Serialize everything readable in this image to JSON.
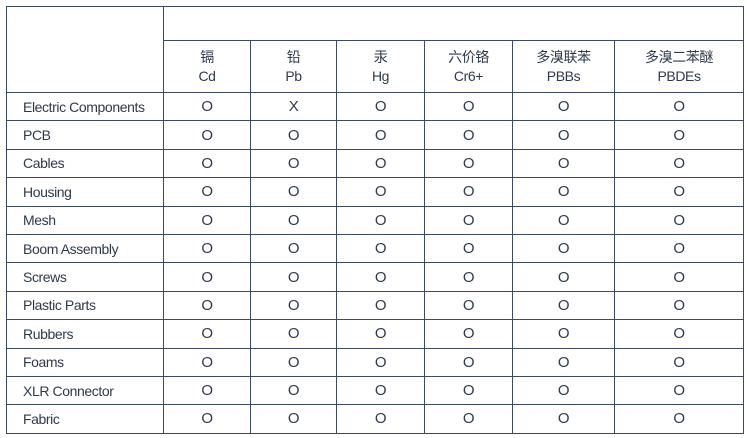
{
  "table": {
    "columns": [
      {
        "cn": "镉",
        "en": "Cd"
      },
      {
        "cn": "铅",
        "en": "Pb"
      },
      {
        "cn": "汞",
        "en": "Hg"
      },
      {
        "cn": "六价铬",
        "en": "Cr6+"
      },
      {
        "cn": "多溴联苯",
        "en": "PBBs"
      },
      {
        "cn": "多溴二苯醚",
        "en": "PBDEs"
      }
    ],
    "rows": [
      {
        "part": "Electric Components",
        "values": [
          "O",
          "X",
          "O",
          "O",
          "O",
          "O"
        ]
      },
      {
        "part": "PCB",
        "values": [
          "O",
          "O",
          "O",
          "O",
          "O",
          "O"
        ]
      },
      {
        "part": "Cables",
        "values": [
          "O",
          "O",
          "O",
          "O",
          "O",
          "O"
        ]
      },
      {
        "part": "Housing",
        "values": [
          "O",
          "O",
          "O",
          "O",
          "O",
          "O"
        ]
      },
      {
        "part": "Mesh",
        "values": [
          "O",
          "O",
          "O",
          "O",
          "O",
          "O"
        ]
      },
      {
        "part": "Boom Assembly",
        "values": [
          "O",
          "O",
          "O",
          "O",
          "O",
          "O"
        ]
      },
      {
        "part": "Screws",
        "values": [
          "O",
          "O",
          "O",
          "O",
          "O",
          "O"
        ]
      },
      {
        "part": "Plastic Parts",
        "values": [
          "O",
          "O",
          "O",
          "O",
          "O",
          "O"
        ]
      },
      {
        "part": "Rubbers",
        "values": [
          "O",
          "O",
          "O",
          "O",
          "O",
          "O"
        ]
      },
      {
        "part": "Foams",
        "values": [
          "O",
          "O",
          "O",
          "O",
          "O",
          "O"
        ]
      },
      {
        "part": "XLR Connector",
        "values": [
          "O",
          "O",
          "O",
          "O",
          "O",
          "O"
        ]
      },
      {
        "part": "Fabric",
        "values": [
          "O",
          "O",
          "O",
          "O",
          "O",
          "O"
        ]
      }
    ]
  }
}
